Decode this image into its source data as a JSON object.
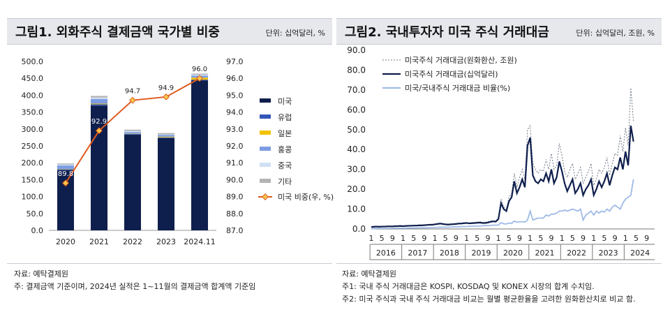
{
  "fig1": {
    "title": "그림1. 외화주식 결제금액 국가별 비중",
    "unit": "단위: 십억달러, %",
    "source": "자료: 예탁결제원",
    "note": "주: 결제금액 기준이며, 2024년 실적은 1~11월의 결제금액 합계액 기준임"
  },
  "fig2": {
    "title": "그림2. 국내투자자 미국 주식 거래대금",
    "unit": "단위: 십억달러, 조원, %",
    "source": "자료: 예탁결제원",
    "note1": "주1: 국내 주식 거래대금은 KOSPI, KOSDAQ 및 KONEX 시장의 합계 수치임.",
    "note2": "주2: 미국 주식과 국내 주식 거래대금 비교는 월별 평균환율을 고려한 원화환산치로 비교 함."
  },
  "chart_data": [
    {
      "type": "bar",
      "stacked": true,
      "categories": [
        "2020",
        "2021",
        "2022",
        "2023",
        "2024.11"
      ],
      "ylim": [
        0,
        500
      ],
      "y_ticks": [
        "0.0",
        "50.0",
        "100.0",
        "150.0",
        "200.0",
        "250.0",
        "300.0",
        "350.0",
        "400.0",
        "450.0",
        "500.0"
      ],
      "y2lim": [
        87,
        97
      ],
      "y2_ticks": [
        "87.0",
        "88.0",
        "89.0",
        "90.0",
        "91.0",
        "92.0",
        "93.0",
        "94.0",
        "95.0",
        "96.0",
        "97.0"
      ],
      "series": [
        {
          "name": "미국",
          "color": "#0f1f4d",
          "values": [
            178,
            369,
            283,
            273,
            444
          ]
        },
        {
          "name": "유럽",
          "color": "#3457b8",
          "values": [
            3,
            4,
            2,
            2,
            2
          ]
        },
        {
          "name": "일본",
          "color": "#f2c200",
          "values": [
            1,
            2,
            1,
            2,
            6
          ]
        },
        {
          "name": "홍콩",
          "color": "#7d9de3",
          "values": [
            10,
            14,
            5,
            5,
            6
          ]
        },
        {
          "name": "중국",
          "color": "#cfe0f4",
          "values": [
            3,
            4,
            3,
            2,
            3
          ]
        },
        {
          "name": "기타",
          "color": "#b4b4b4",
          "values": [
            3,
            5,
            4,
            4,
            3
          ]
        }
      ],
      "line": {
        "name": "미국 비중(우, %)",
        "color": "#e05a1c",
        "values": [
          89.8,
          92.9,
          94.7,
          94.9,
          96.0
        ],
        "labels": [
          "89.8",
          "92.9",
          "94.7",
          "94.9",
          "96.0"
        ]
      }
    },
    {
      "type": "line",
      "ylim": [
        0,
        90
      ],
      "y_ticks": [
        "0.0",
        "10.0",
        "20.0",
        "30.0",
        "40.0",
        "50.0",
        "60.0",
        "70.0",
        "80.0",
        "90.0"
      ],
      "month_ticks": [
        "1",
        "5",
        "9"
      ],
      "years": [
        "2016",
        "2017",
        "2018",
        "2019",
        "2020",
        "2021",
        "2022",
        "2023",
        "2024"
      ],
      "series": [
        {
          "name": "미국주식 거래대금(원화환산, 조원)",
          "color": "#6f7886",
          "dashed": true,
          "values": [
            1.2,
            1.3,
            1.4,
            1.3,
            1.4,
            1.4,
            1.5,
            1.5,
            1.5,
            1.6,
            1.6,
            1.7,
            1.6,
            1.7,
            1.8,
            1.8,
            1.9,
            1.9,
            2,
            2,
            2.1,
            2.2,
            2.3,
            2.4,
            2.6,
            2.8,
            3,
            2.8,
            2.6,
            2.5,
            2.6,
            2.7,
            2.8,
            3,
            3,
            3.2,
            3.3,
            3.1,
            3.2,
            3.3,
            3.5,
            3.6,
            3.4,
            3.4,
            3.6,
            4,
            4.2,
            4.1,
            5.5,
            15,
            11,
            10,
            16,
            18,
            28,
            21,
            26,
            30,
            25,
            50,
            52,
            33,
            30,
            28,
            30,
            29,
            35,
            30,
            38,
            30,
            32,
            43,
            37,
            29,
            26,
            30,
            33,
            25,
            28,
            31,
            23,
            26,
            29,
            33,
            22,
            25,
            30,
            28,
            31,
            36,
            27,
            33,
            38,
            37,
            47,
            39,
            51,
            42,
            71,
            54,
            41,
            88
          ]
        },
        {
          "name": "미국주식 거래대금(십억달러)",
          "color": "#0f1f4d",
          "dashed": false,
          "values": [
            1,
            1.1,
            1.2,
            1.1,
            1.2,
            1.2,
            1.3,
            1.3,
            1.3,
            1.4,
            1.4,
            1.5,
            1.4,
            1.5,
            1.6,
            1.6,
            1.7,
            1.7,
            1.8,
            1.8,
            1.9,
            2,
            2.1,
            2.1,
            2.3,
            2.5,
            2.7,
            2.5,
            2.3,
            2.2,
            2.3,
            2.4,
            2.5,
            2.7,
            2.7,
            2.9,
            3,
            2.8,
            2.9,
            3,
            3.1,
            3.2,
            3,
            3,
            3.2,
            3.6,
            3.8,
            3.7,
            5,
            13,
            10,
            9,
            14,
            16,
            24,
            18,
            21,
            25,
            21,
            42,
            46,
            27,
            24,
            23,
            25,
            24,
            28,
            24,
            30,
            23,
            26,
            34,
            29,
            23,
            19,
            22,
            25,
            18,
            20,
            23,
            17,
            20,
            22,
            25,
            17,
            20,
            24,
            21,
            24,
            28,
            22,
            27,
            31,
            30,
            36,
            30,
            39,
            32,
            52,
            44,
            37,
            63
          ]
        },
        {
          "name": "미국/국내주식 거래대금 비율(%)",
          "color": "#9fbbe6",
          "dashed": false,
          "values": [
            0.2,
            0.2,
            0.3,
            0.3,
            0.3,
            0.3,
            0.3,
            0.3,
            0.4,
            0.4,
            0.4,
            0.4,
            0.4,
            0.4,
            0.5,
            0.5,
            0.5,
            0.5,
            0.6,
            0.6,
            0.6,
            0.6,
            0.7,
            0.7,
            0.8,
            0.8,
            0.9,
            0.9,
            0.9,
            0.9,
            1,
            1,
            1.1,
            1.1,
            1.2,
            1.2,
            1.3,
            1.3,
            1.4,
            1.4,
            1.5,
            1.5,
            1.6,
            1.7,
            1.7,
            1.8,
            1.9,
            1.9,
            2,
            3.2,
            2.6,
            2.5,
            3,
            2.8,
            4,
            3.4,
            3.6,
            3.6,
            3.5,
            4.5,
            9,
            4.5,
            5,
            5.5,
            5.5,
            5.5,
            7,
            6.5,
            7.5,
            7.5,
            8,
            9,
            9,
            9.5,
            9,
            9.5,
            10,
            9.5,
            9,
            10,
            4.5,
            7,
            8,
            9,
            7,
            9,
            8,
            9,
            8.5,
            10,
            9,
            11,
            12,
            11,
            10,
            13,
            15,
            16,
            17,
            25
          ]
        }
      ]
    }
  ]
}
